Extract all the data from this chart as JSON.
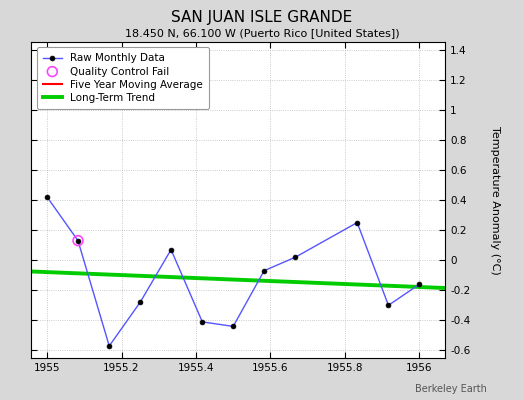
{
  "title": "SAN JUAN ISLE GRANDE",
  "subtitle": "18.450 N, 66.100 W (Puerto Rico [United States])",
  "ylabel": "Temperature Anomaly (°C)",
  "watermark": "Berkeley Earth",
  "xlim": [
    1954.958,
    1956.07
  ],
  "ylim": [
    -0.65,
    1.45
  ],
  "yticks": [
    -0.6,
    -0.4,
    -0.2,
    0.0,
    0.2,
    0.4,
    0.6,
    0.8,
    1.0,
    1.2,
    1.4
  ],
  "xticks": [
    1955.0,
    1955.2,
    1955.4,
    1955.6,
    1955.8,
    1956.0
  ],
  "raw_x": [
    1955.0,
    1955.083,
    1955.167,
    1955.25,
    1955.333,
    1955.417,
    1955.5,
    1955.583,
    1955.667,
    1955.833,
    1955.917,
    1956.0
  ],
  "raw_y": [
    0.42,
    0.13,
    -0.57,
    -0.28,
    0.07,
    -0.41,
    -0.44,
    -0.07,
    0.02,
    0.25,
    -0.3,
    -0.16
  ],
  "qc_fail_x": [
    1955.083
  ],
  "qc_fail_y": [
    0.13
  ],
  "trend_x": [
    1954.958,
    1956.07
  ],
  "trend_y": [
    -0.075,
    -0.185
  ],
  "raw_line_color": "#5555ff",
  "raw_marker_color": "#000000",
  "trend_color": "#00cc00",
  "moving_avg_color": "#ff0000",
  "qc_color": "#ff44ff",
  "figure_bg_color": "#d8d8d8",
  "plot_bg_color": "#ffffff",
  "title_fontsize": 11,
  "subtitle_fontsize": 8,
  "label_fontsize": 8,
  "tick_fontsize": 7.5,
  "legend_fontsize": 7.5
}
